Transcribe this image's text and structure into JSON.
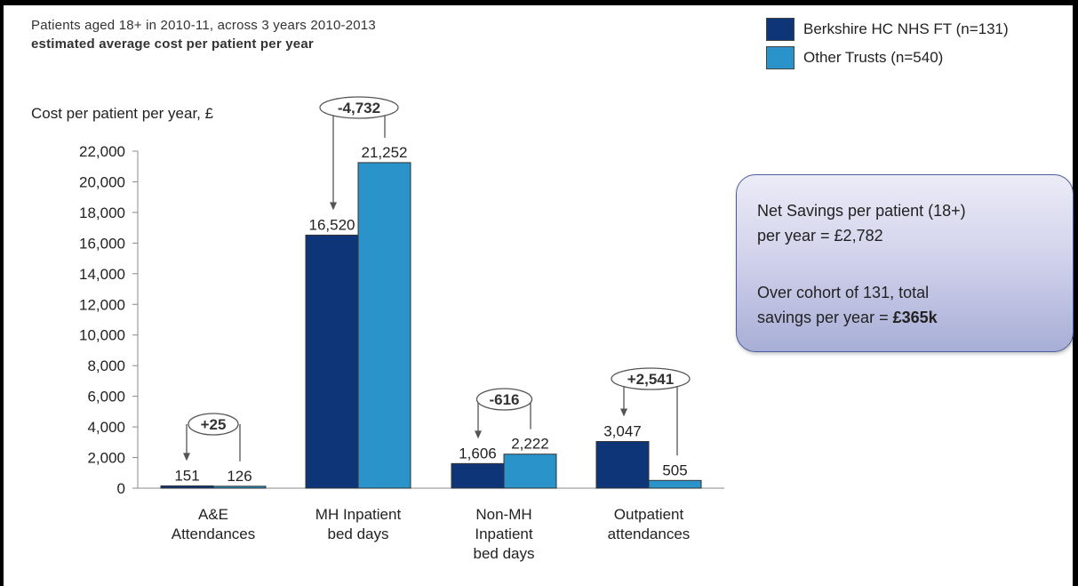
{
  "header": {
    "subtitle_line1": "Patients aged 18+ in 2010-11, across 3 years 2010-2013",
    "subtitle_line2": "estimated average cost per patient per year"
  },
  "legend": [
    {
      "label": "Berkshire HC NHS FT (n=131)",
      "color": "#0d3577"
    },
    {
      "label": "Other Trusts (n=540)",
      "color": "#2a93c9"
    }
  ],
  "callout": {
    "line1": "Net Savings per patient (18+)",
    "line2": "per year = £2,782",
    "line3": "Over cohort of 131, total",
    "line4_prefix": "savings per year = ",
    "line4_bold": "£365k"
  },
  "chart_data": {
    "type": "bar",
    "ylabel": "Cost per patient per year, £",
    "ylim": [
      0,
      22000
    ],
    "yticks": [
      0,
      2000,
      4000,
      6000,
      8000,
      10000,
      12000,
      14000,
      16000,
      18000,
      20000,
      22000
    ],
    "ytick_labels": [
      "0",
      "2,000",
      "4,000",
      "6,000",
      "8,000",
      "10,000",
      "12,000",
      "14,000",
      "16,000",
      "18,000",
      "20,000",
      "22,000"
    ],
    "grid": false,
    "legend_position": "top-right",
    "categories": [
      [
        "A&E",
        "Attendances"
      ],
      [
        "MH Inpatient",
        "bed days"
      ],
      [
        "Non-MH",
        "Inpatient",
        "bed days"
      ],
      [
        "Outpatient",
        "attendances"
      ]
    ],
    "series": [
      {
        "name": "Berkshire HC NHS FT (n=131)",
        "values": [
          151,
          16520,
          1606,
          3047
        ],
        "labels": [
          "151",
          "16,520",
          "1,606",
          "3,047"
        ],
        "color": "#0d3577"
      },
      {
        "name": "Other Trusts (n=540)",
        "values": [
          126,
          21252,
          2222,
          505
        ],
        "labels": [
          "126",
          "21,252",
          "2,222",
          "505"
        ],
        "color": "#2a93c9"
      }
    ],
    "differences": [
      "+25",
      "-4,732",
      "-616",
      "+2,541"
    ]
  }
}
